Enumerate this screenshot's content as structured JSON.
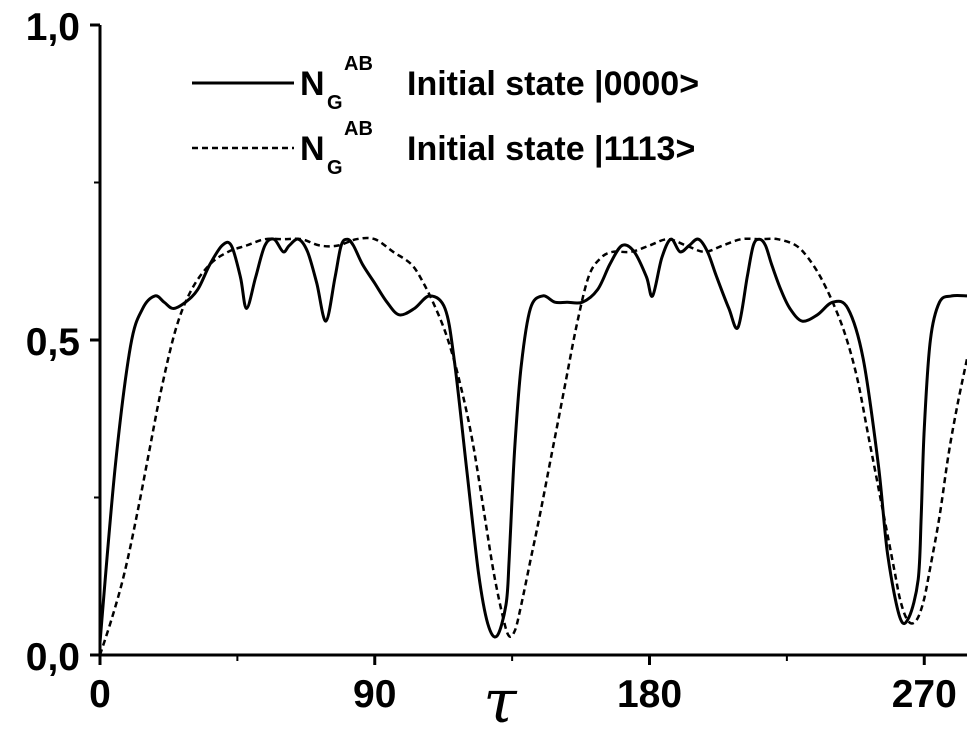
{
  "chart_data": {
    "type": "line",
    "title": "",
    "xlabel": "τ",
    "ylabel": "",
    "xlim": [
      0,
      284
    ],
    "ylim": [
      0,
      1
    ],
    "grid": false,
    "legend_position": "top-left",
    "x_ticks": [
      {
        "value": 0,
        "label": "0"
      },
      {
        "value": 90,
        "label": "90"
      },
      {
        "value": 180,
        "label": "180"
      },
      {
        "value": 270,
        "label": "270"
      }
    ],
    "x_minor_ticks": [
      45,
      135,
      225
    ],
    "y_ticks": [
      {
        "value": 0,
        "label": "0,0"
      },
      {
        "value": 0.5,
        "label": "0,5"
      },
      {
        "value": 1,
        "label": "1,0"
      }
    ],
    "y_minor_ticks": [
      0.25,
      0.75
    ],
    "legend": [
      {
        "symbol": "N",
        "subscript": "G",
        "superscript": "AB",
        "text": "Initial state |0000>",
        "style": "solid"
      },
      {
        "symbol": "N",
        "subscript": "G",
        "superscript": "AB",
        "text": "Initial state |1113>",
        "style": "dashed"
      }
    ],
    "series": [
      {
        "style": "solid",
        "color": "#000000",
        "x": [
          0,
          5,
          10,
          14,
          18,
          21,
          24,
          28,
          32,
          36,
          40,
          43,
          46,
          48,
          51,
          54,
          57,
          60,
          62,
          65,
          68,
          71,
          74,
          77,
          79,
          81,
          83,
          86,
          90,
          94,
          98,
          103,
          108,
          113,
          116,
          120,
          124,
          127,
          130,
          133,
          134,
          135,
          136,
          138,
          141,
          145,
          149,
          153,
          158,
          163,
          167,
          171,
          175,
          179,
          181,
          184,
          187,
          190,
          193,
          196,
          199,
          202,
          206,
          209,
          212,
          214,
          216,
          218,
          220,
          223,
          226,
          230,
          235,
          240,
          245,
          250,
          255,
          258,
          262,
          265,
          268,
          269,
          270,
          272,
          275,
          279,
          284
        ],
        "y": [
          0.02,
          0.3,
          0.49,
          0.55,
          0.57,
          0.56,
          0.55,
          0.56,
          0.58,
          0.62,
          0.65,
          0.65,
          0.6,
          0.55,
          0.6,
          0.65,
          0.66,
          0.64,
          0.65,
          0.66,
          0.64,
          0.59,
          0.53,
          0.6,
          0.65,
          0.66,
          0.65,
          0.62,
          0.59,
          0.56,
          0.54,
          0.55,
          0.57,
          0.55,
          0.47,
          0.3,
          0.13,
          0.05,
          0.03,
          0.08,
          0.15,
          0.25,
          0.34,
          0.46,
          0.55,
          0.57,
          0.56,
          0.56,
          0.56,
          0.58,
          0.62,
          0.65,
          0.64,
          0.6,
          0.57,
          0.63,
          0.66,
          0.64,
          0.65,
          0.66,
          0.64,
          0.6,
          0.55,
          0.52,
          0.6,
          0.65,
          0.66,
          0.65,
          0.62,
          0.58,
          0.55,
          0.53,
          0.54,
          0.56,
          0.55,
          0.47,
          0.3,
          0.16,
          0.06,
          0.06,
          0.12,
          0.22,
          0.36,
          0.5,
          0.56,
          0.57,
          0.57
        ]
      },
      {
        "style": "dashed",
        "color": "#000000",
        "x": [
          0,
          4,
          8,
          12,
          16,
          20,
          25,
          30,
          36,
          42,
          48,
          54,
          60,
          66,
          72,
          78,
          84,
          90,
          96,
          102,
          106,
          110,
          114,
          118,
          122,
          126,
          129,
          132,
          134,
          136,
          138,
          141,
          144,
          148,
          152,
          156,
          160,
          164,
          168,
          174,
          180,
          186,
          192,
          198,
          204,
          210,
          216,
          222,
          228,
          232,
          236,
          240,
          244,
          248,
          252,
          256,
          260,
          262,
          264,
          266,
          268,
          270,
          272,
          275,
          278,
          281,
          284
        ],
        "y": [
          0.0,
          0.06,
          0.13,
          0.22,
          0.32,
          0.42,
          0.52,
          0.58,
          0.62,
          0.64,
          0.65,
          0.66,
          0.66,
          0.66,
          0.65,
          0.65,
          0.66,
          0.66,
          0.64,
          0.62,
          0.59,
          0.55,
          0.5,
          0.43,
          0.34,
          0.22,
          0.13,
          0.06,
          0.03,
          0.04,
          0.08,
          0.15,
          0.22,
          0.32,
          0.42,
          0.52,
          0.6,
          0.63,
          0.64,
          0.64,
          0.65,
          0.66,
          0.65,
          0.64,
          0.65,
          0.66,
          0.66,
          0.66,
          0.65,
          0.63,
          0.6,
          0.56,
          0.51,
          0.44,
          0.34,
          0.24,
          0.14,
          0.09,
          0.06,
          0.05,
          0.06,
          0.09,
          0.14,
          0.22,
          0.32,
          0.4,
          0.47
        ]
      }
    ]
  }
}
